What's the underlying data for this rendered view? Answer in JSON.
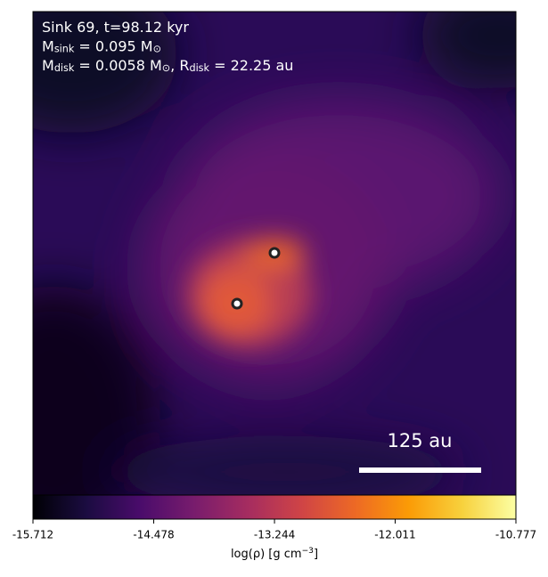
{
  "chart_data": {
    "type": "density-map",
    "annotation_lines": [
      [
        {
          "text": "Sink 69, t=98.12 kyr"
        }
      ],
      [
        {
          "text": "M"
        },
        {
          "sub": "sink"
        },
        {
          "text": " = 0.095 M"
        },
        {
          "sub": "⊙"
        }
      ],
      [
        {
          "text": "M"
        },
        {
          "sub": "disk"
        },
        {
          "text": " = 0.0058 M"
        },
        {
          "sub": "⊙"
        },
        {
          "text": ", R"
        },
        {
          "sub": "disk"
        },
        {
          "text": " = 22.25 au"
        }
      ]
    ],
    "scale_bar_label": "125 au",
    "colormap": "inferno",
    "clim": [
      -15.712,
      -10.777
    ],
    "cticks": [
      -15.712,
      -14.478,
      -13.244,
      -12.011,
      -10.777
    ],
    "colorbar_label": [
      {
        "text": "log(ρ) [g cm"
      },
      {
        "sup": "−3"
      },
      {
        "text": "]"
      }
    ]
  }
}
